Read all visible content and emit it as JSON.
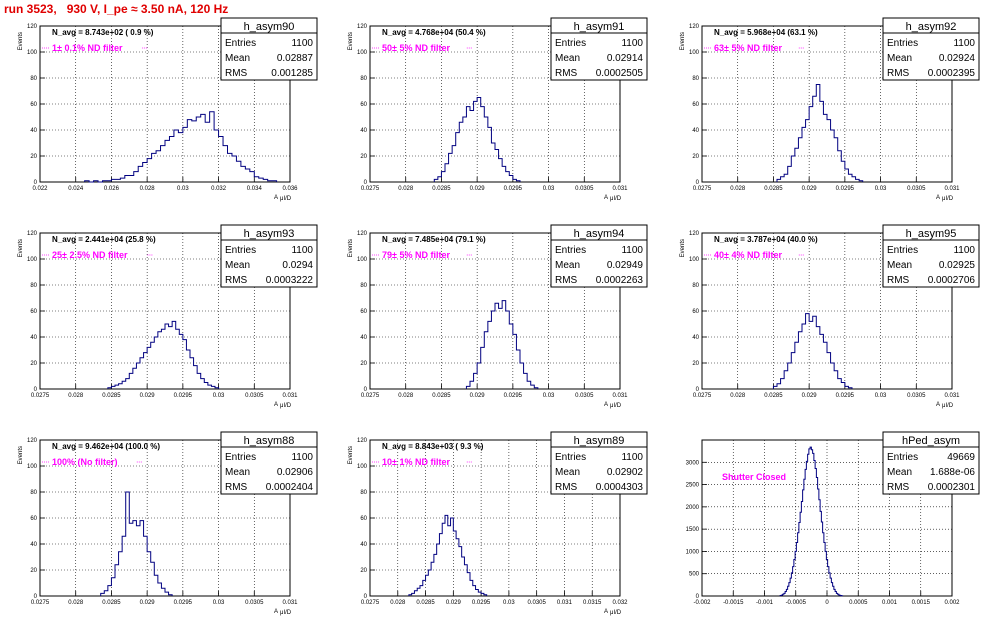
{
  "title": "run 3523,   930 V, I_pe ≈ 3.50 nA, 120 Hz",
  "colors": {
    "title": "#e00000",
    "hist": "#000080",
    "filter_text": "#ff00ff",
    "grid": "#000000"
  },
  "chart_data": [
    {
      "type": "histogram",
      "name": "h_asym90",
      "navg": "N_avg = 8.743e+02 ( 0.9 %)",
      "filter": "1± 0.1% ND filter",
      "stats": {
        "entries": "1100",
        "mean": "0.02887",
        "rms": "0.001285"
      },
      "xlabel": "A",
      "xlabel_sub": "μI/D",
      "ylabel": "Events",
      "xlim": [
        0.022,
        0.036
      ],
      "ylim": [
        0,
        120
      ],
      "grid": true,
      "xticks": [
        "0.022",
        "0.024",
        "0.026",
        "0.028",
        "0.03",
        "0.032",
        "0.034",
        "0.036"
      ],
      "yticks": [
        "0",
        "20",
        "40",
        "60",
        "80",
        "100",
        "120"
      ],
      "bins": {
        "start": 0.0245,
        "width": 0.00025,
        "counts": [
          1,
          0,
          1,
          0,
          1,
          1,
          2,
          2,
          3,
          5,
          5,
          8,
          12,
          15,
          18,
          22,
          24,
          28,
          32,
          35,
          40,
          38,
          42,
          48,
          47,
          50,
          52,
          46,
          54,
          40,
          35,
          28,
          22,
          20,
          16,
          12,
          10,
          8,
          4,
          3,
          2,
          1,
          1
        ]
      }
    },
    {
      "type": "histogram",
      "name": "h_asym91",
      "navg": "N_avg = 4.768e+04 (50.4 %)",
      "filter": "50± 5% ND filter",
      "stats": {
        "entries": "1100",
        "mean": "0.02914",
        "rms": "0.0002505"
      },
      "xlabel": "A",
      "xlabel_sub": "μI/D",
      "ylabel": "Events",
      "xlim": [
        0.0275,
        0.031
      ],
      "ylim": [
        0,
        120
      ],
      "grid": true,
      "xticks": [
        "0.0275",
        "0.028",
        "0.0285",
        "0.029",
        "0.0295",
        "0.03",
        "0.0305",
        "0.031"
      ],
      "yticks": [
        "0",
        "20",
        "40",
        "60",
        "80",
        "100",
        "120"
      ],
      "bins": {
        "start": 0.0284,
        "width": 5e-05,
        "counts": [
          2,
          4,
          8,
          14,
          22,
          28,
          38,
          46,
          50,
          58,
          55,
          62,
          65,
          58,
          50,
          42,
          30,
          25,
          18,
          12,
          8,
          5,
          2,
          1
        ]
      }
    },
    {
      "type": "histogram",
      "name": "h_asym92",
      "navg": "N_avg = 5.968e+04 (63.1 %)",
      "filter": "63± 5% ND filter",
      "stats": {
        "entries": "1100",
        "mean": "0.02924",
        "rms": "0.0002395"
      },
      "xlabel": "A",
      "xlabel_sub": "μI/D",
      "ylabel": "Events",
      "xlim": [
        0.0275,
        0.031
      ],
      "ylim": [
        0,
        120
      ],
      "grid": true,
      "xticks": [
        "0.0275",
        "0.028",
        "0.0285",
        "0.029",
        "0.0295",
        "0.03",
        "0.0305",
        "0.031"
      ],
      "yticks": [
        "0",
        "20",
        "40",
        "60",
        "80",
        "100",
        "120"
      ],
      "bins": {
        "start": 0.02855,
        "width": 5e-05,
        "counts": [
          2,
          4,
          6,
          12,
          20,
          26,
          34,
          42,
          48,
          58,
          66,
          75,
          62,
          52,
          48,
          40,
          34,
          24,
          16,
          10,
          6,
          4,
          2,
          1
        ]
      }
    },
    {
      "type": "histogram",
      "name": "h_asym93",
      "navg": "N_avg = 2.441e+04 (25.8 %)",
      "filter": "25± 2.5% ND filter",
      "stats": {
        "entries": "1100",
        "mean": "0.0294",
        "rms": "0.0003222"
      },
      "xlabel": "A",
      "xlabel_sub": "μI/D",
      "ylabel": "Events",
      "xlim": [
        0.0275,
        0.031
      ],
      "ylim": [
        0,
        120
      ],
      "grid": true,
      "xticks": [
        "0.0275",
        "0.028",
        "0.0285",
        "0.029",
        "0.0295",
        "0.03",
        "0.0305",
        "0.031"
      ],
      "yticks": [
        "0",
        "20",
        "40",
        "60",
        "80",
        "100",
        "120"
      ],
      "bins": {
        "start": 0.02845,
        "width": 5e-05,
        "counts": [
          1,
          2,
          3,
          4,
          6,
          8,
          12,
          16,
          20,
          24,
          28,
          32,
          36,
          40,
          44,
          46,
          50,
          48,
          52,
          46,
          42,
          38,
          30,
          24,
          18,
          12,
          8,
          5,
          3,
          2,
          1
        ]
      }
    },
    {
      "type": "histogram",
      "name": "h_asym94",
      "navg": "N_avg = 7.485e+04 (79.1 %)",
      "filter": "79± 5% ND filter",
      "stats": {
        "entries": "1100",
        "mean": "0.02949",
        "rms": "0.0002263"
      },
      "xlabel": "A",
      "xlabel_sub": "μI/D",
      "ylabel": "Events",
      "xlim": [
        0.0275,
        0.031
      ],
      "ylim": [
        0,
        120
      ],
      "grid": true,
      "xticks": [
        "0.0275",
        "0.028",
        "0.0285",
        "0.029",
        "0.0295",
        "0.03",
        "0.0305",
        "0.031"
      ],
      "yticks": [
        "0",
        "20",
        "40",
        "60",
        "80",
        "100",
        "120"
      ],
      "bins": {
        "start": 0.02885,
        "width": 5e-05,
        "counts": [
          2,
          6,
          12,
          20,
          32,
          44,
          52,
          60,
          66,
          62,
          68,
          60,
          50,
          42,
          30,
          20,
          12,
          6,
          3,
          1
        ]
      }
    },
    {
      "type": "histogram",
      "name": "h_asym95",
      "navg": "N_avg = 3.787e+04 (40.0 %)",
      "filter": "40± 4% ND filter",
      "stats": {
        "entries": "1100",
        "mean": "0.02925",
        "rms": "0.0002706"
      },
      "xlabel": "A",
      "xlabel_sub": "μI/D",
      "ylabel": "Events",
      "xlim": [
        0.0275,
        0.031
      ],
      "ylim": [
        0,
        120
      ],
      "grid": true,
      "xticks": [
        "0.0275",
        "0.028",
        "0.0285",
        "0.029",
        "0.0295",
        "0.03",
        "0.0305",
        "0.031"
      ],
      "yticks": [
        "0",
        "20",
        "40",
        "60",
        "80",
        "100",
        "120"
      ],
      "bins": {
        "start": 0.0285,
        "width": 5e-05,
        "counts": [
          2,
          4,
          8,
          14,
          20,
          28,
          36,
          44,
          50,
          58,
          52,
          56,
          48,
          42,
          36,
          28,
          20,
          14,
          8,
          5,
          2,
          1
        ]
      }
    },
    {
      "type": "histogram",
      "name": "h_asym88",
      "navg": "N_avg = 9.462e+04 (100.0 %)",
      "filter": "100% (No filter)",
      "stats": {
        "entries": "1100",
        "mean": "0.02906",
        "rms": "0.0002404"
      },
      "xlabel": "A",
      "xlabel_sub": "μI/D",
      "ylabel": "Events",
      "xlim": [
        0.0275,
        0.031
      ],
      "ylim": [
        0,
        120
      ],
      "grid": true,
      "xticks": [
        "0.0275",
        "0.028",
        "0.0285",
        "0.029",
        "0.0295",
        "0.03",
        "0.0305",
        "0.031"
      ],
      "yticks": [
        "0",
        "20",
        "40",
        "60",
        "80",
        "100",
        "120"
      ],
      "bins": {
        "start": 0.02835,
        "width": 5e-05,
        "counts": [
          2,
          4,
          8,
          14,
          24,
          34,
          46,
          80,
          56,
          58,
          54,
          58,
          46,
          34,
          26,
          16,
          10,
          6,
          3,
          1
        ]
      }
    },
    {
      "type": "histogram",
      "name": "h_asym89",
      "navg": "N_avg = 8.843e+03 ( 9.3 %)",
      "filter": "10± 1% ND filter",
      "stats": {
        "entries": "1100",
        "mean": "0.02902",
        "rms": "0.0004303"
      },
      "xlabel": "A",
      "xlabel_sub": "μI/D",
      "ylabel": "Events",
      "xlim": [
        0.0275,
        0.032
      ],
      "ylim": [
        0,
        120
      ],
      "grid": true,
      "xticks": [
        "0.0275",
        "0.028",
        "0.0285",
        "0.029",
        "0.0295",
        "0.03",
        "0.0305",
        "0.031",
        "0.0315",
        "0.032"
      ],
      "yticks": [
        "0",
        "20",
        "40",
        "60",
        "80",
        "100",
        "120"
      ],
      "bins": {
        "start": 0.0282,
        "width": 5e-05,
        "counts": [
          1,
          2,
          4,
          6,
          8,
          12,
          16,
          20,
          26,
          32,
          40,
          48,
          56,
          62,
          54,
          60,
          50,
          44,
          38,
          30,
          24,
          18,
          12,
          8,
          5,
          3,
          2,
          1
        ]
      }
    },
    {
      "type": "histogram",
      "name": "hPed_asym",
      "navg": "",
      "filter": "Shutter Closed",
      "stats": {
        "entries": "49669",
        "mean": "1.688e-06",
        "rms": "0.0002301"
      },
      "xlabel": "",
      "xlabel_sub": "",
      "ylabel": "",
      "xlim": [
        -0.002,
        0.002
      ],
      "ylim": [
        0,
        3500
      ],
      "grid": true,
      "xticks": [
        "-0.002",
        "-0.0015",
        "-0.001",
        "-0.0005",
        "0",
        "0.0005",
        "0.001",
        "0.0015",
        "0.002"
      ],
      "yticks": [
        "0",
        "500",
        "1000",
        "1500",
        "2000",
        "2500",
        "3000"
      ],
      "bins": {
        "start": -0.00075,
        "width": 2e-05,
        "counts": [
          10,
          20,
          40,
          60,
          100,
          150,
          220,
          300,
          400,
          520,
          660,
          820,
          1000,
          1200,
          1420,
          1650,
          1880,
          2120,
          2380,
          2620,
          2840,
          3020,
          3180,
          3300,
          3340,
          3280,
          3200,
          3040,
          2860,
          2660,
          2400,
          2160,
          1900,
          1660,
          1420,
          1200,
          1000,
          820,
          660,
          520,
          400,
          300,
          220,
          150,
          100,
          60,
          40,
          20,
          10,
          5
        ]
      }
    }
  ]
}
